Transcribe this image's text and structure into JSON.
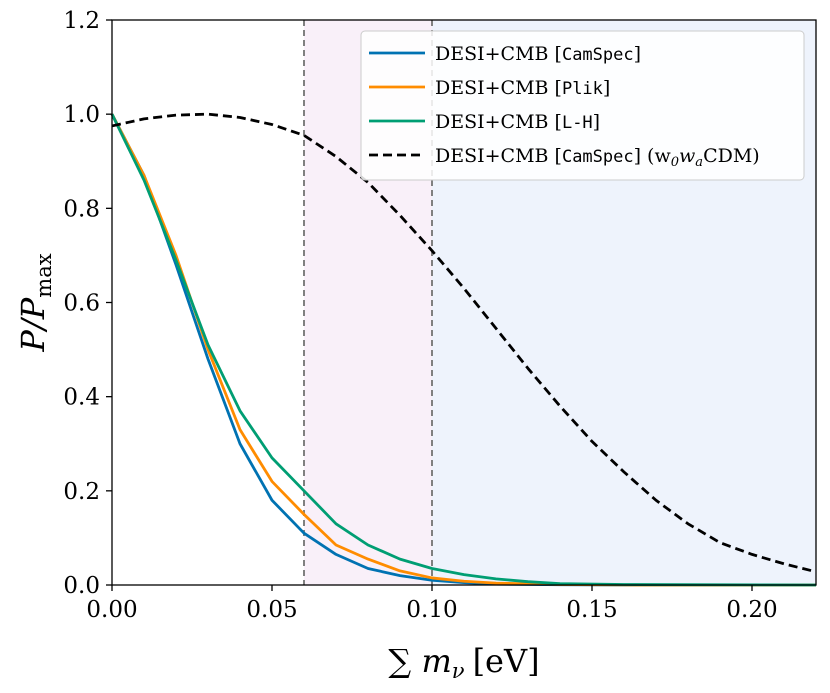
{
  "chart_data": {
    "type": "line",
    "xlabel": "∑ m",
    "xlabel_sub": "ν",
    "xlabel_unit": "[eV]",
    "ylabel": "P/P",
    "ylabel_sub": "max",
    "xlim": [
      0,
      0.22
    ],
    "ylim": [
      0,
      1.2
    ],
    "x_ticks": [
      0.0,
      0.05,
      0.1,
      0.15,
      0.2
    ],
    "x_tick_labels": [
      "0.00",
      "0.05",
      "0.10",
      "0.15",
      "0.20"
    ],
    "y_ticks": [
      0.0,
      0.2,
      0.4,
      0.6,
      0.8,
      1.0,
      1.2
    ],
    "y_tick_labels": [
      "0.0",
      "0.2",
      "0.4",
      "0.6",
      "0.8",
      "1.0",
      "1.2"
    ],
    "grid": false,
    "legend_position": "top-right",
    "shaded_regions": [
      {
        "x": [
          0.06,
          0.1
        ],
        "color": "#f9f0f9"
      },
      {
        "x": [
          0.1,
          0.22
        ],
        "color": "#eef3fc"
      }
    ],
    "vertical_lines": [
      0.06,
      0.1
    ],
    "series": [
      {
        "name": "DESI+CMB [CamSpec]",
        "legend_label": {
          "pre": "DESI+CMB [",
          "mono": "CamSpec",
          "post": "]"
        },
        "color": "#0072b2",
        "dash": "solid",
        "x": [
          0,
          0.01,
          0.02,
          0.03,
          0.04,
          0.05,
          0.06,
          0.07,
          0.08,
          0.09,
          0.1,
          0.11,
          0.12,
          0.14,
          0.16,
          0.22
        ],
        "y": [
          1.0,
          0.87,
          0.68,
          0.48,
          0.3,
          0.18,
          0.11,
          0.065,
          0.035,
          0.02,
          0.01,
          0.005,
          0.002,
          0.0005,
          0.0001,
          0
        ]
      },
      {
        "name": "DESI+CMB [Plik]",
        "legend_label": {
          "pre": "DESI+CMB [",
          "mono": "Plik",
          "post": "]"
        },
        "color": "#ff8c00",
        "dash": "solid",
        "x": [
          0,
          0.01,
          0.02,
          0.03,
          0.04,
          0.05,
          0.06,
          0.07,
          0.08,
          0.09,
          0.1,
          0.11,
          0.12,
          0.14,
          0.16,
          0.22
        ],
        "y": [
          1.0,
          0.87,
          0.7,
          0.5,
          0.33,
          0.22,
          0.15,
          0.085,
          0.055,
          0.03,
          0.015,
          0.008,
          0.004,
          0.001,
          0.0002,
          0
        ]
      },
      {
        "name": "DESI+CMB [L-H]",
        "legend_label": {
          "pre": "DESI+CMB [",
          "mono": "L-H",
          "post": "]"
        },
        "color": "#009e73",
        "dash": "solid",
        "x": [
          0,
          0.01,
          0.02,
          0.03,
          0.04,
          0.05,
          0.06,
          0.07,
          0.08,
          0.09,
          0.1,
          0.11,
          0.12,
          0.13,
          0.14,
          0.16,
          0.22
        ],
        "y": [
          1.0,
          0.86,
          0.69,
          0.51,
          0.37,
          0.27,
          0.2,
          0.13,
          0.085,
          0.055,
          0.035,
          0.022,
          0.013,
          0.007,
          0.003,
          0.001,
          0
        ]
      },
      {
        "name": "DESI+CMB [CamSpec] (w0waCDM)",
        "legend_label": {
          "pre": "DESI+CMB [",
          "mono": "CamSpec",
          "post": "] (w",
          "sub1": "0",
          "mid": "w",
          "sub2": "a",
          "end": "CDM)"
        },
        "color": "#000000",
        "dash": "dashed",
        "x": [
          0,
          0.01,
          0.02,
          0.03,
          0.04,
          0.05,
          0.06,
          0.07,
          0.08,
          0.09,
          0.1,
          0.11,
          0.12,
          0.13,
          0.14,
          0.15,
          0.16,
          0.17,
          0.18,
          0.19,
          0.2,
          0.21,
          0.22
        ],
        "y": [
          0.975,
          0.99,
          0.998,
          1.0,
          0.993,
          0.978,
          0.955,
          0.91,
          0.855,
          0.785,
          0.71,
          0.63,
          0.545,
          0.46,
          0.38,
          0.305,
          0.24,
          0.18,
          0.13,
          0.09,
          0.065,
          0.045,
          0.028
        ]
      }
    ]
  }
}
